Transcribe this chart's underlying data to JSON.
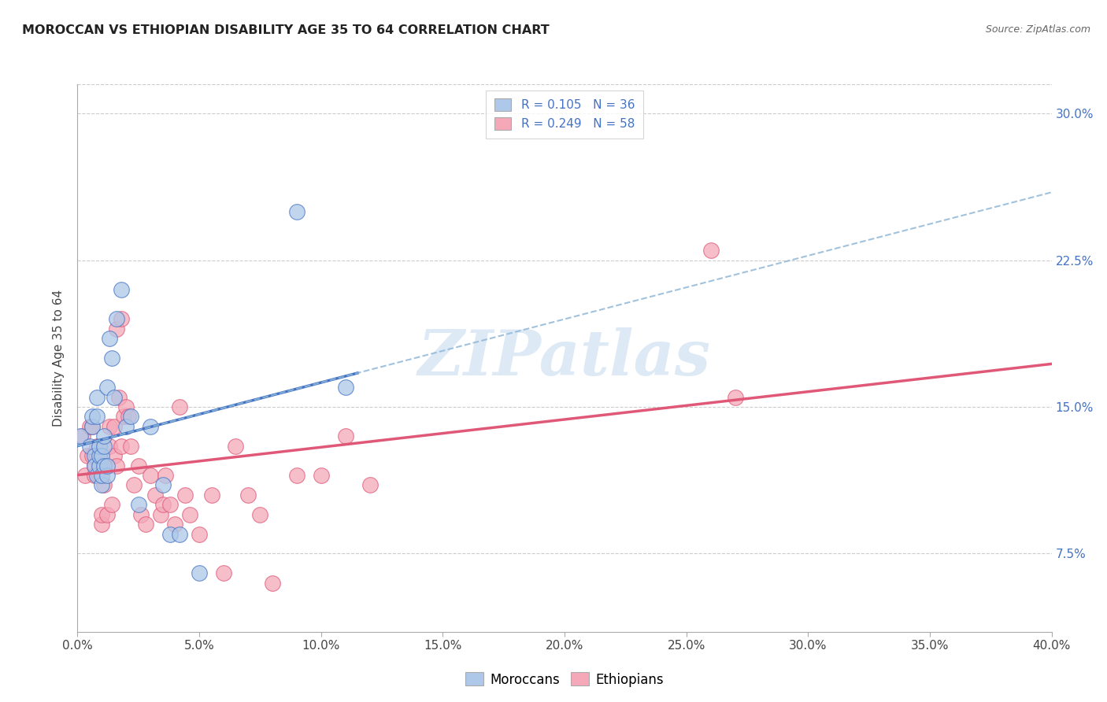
{
  "title": "MOROCCAN VS ETHIOPIAN DISABILITY AGE 35 TO 64 CORRELATION CHART",
  "source": "Source: ZipAtlas.com",
  "ylabel": "Disability Age 35 to 64",
  "moroccan_color": "#adc8e8",
  "ethiopian_color": "#f4a8b8",
  "moroccan_line_color": "#4472c4",
  "ethiopian_line_color": "#e05878",
  "moroccan_dashed_color": "#90b8d8",
  "background_color": "#ffffff",
  "grid_color": "#cccccc",
  "xlim": [
    0.0,
    0.4
  ],
  "ylim": [
    0.035,
    0.315
  ],
  "yticks": [
    0.075,
    0.15,
    0.225,
    0.3
  ],
  "xticks": [
    0.0,
    0.05,
    0.1,
    0.15,
    0.2,
    0.25,
    0.3,
    0.35,
    0.4
  ],
  "moroccan_x": [
    0.001,
    0.005,
    0.006,
    0.006,
    0.007,
    0.007,
    0.008,
    0.008,
    0.008,
    0.009,
    0.009,
    0.009,
    0.01,
    0.01,
    0.01,
    0.011,
    0.011,
    0.011,
    0.012,
    0.012,
    0.012,
    0.013,
    0.014,
    0.015,
    0.016,
    0.018,
    0.02,
    0.022,
    0.025,
    0.03,
    0.035,
    0.038,
    0.042,
    0.05,
    0.09,
    0.11
  ],
  "moroccan_y": [
    0.135,
    0.13,
    0.14,
    0.145,
    0.125,
    0.12,
    0.145,
    0.155,
    0.115,
    0.12,
    0.125,
    0.13,
    0.11,
    0.115,
    0.125,
    0.12,
    0.13,
    0.135,
    0.115,
    0.12,
    0.16,
    0.185,
    0.175,
    0.155,
    0.195,
    0.21,
    0.14,
    0.145,
    0.1,
    0.14,
    0.11,
    0.085,
    0.085,
    0.065,
    0.25,
    0.16
  ],
  "ethiopian_x": [
    0.002,
    0.003,
    0.004,
    0.005,
    0.006,
    0.006,
    0.007,
    0.007,
    0.008,
    0.008,
    0.009,
    0.009,
    0.01,
    0.01,
    0.011,
    0.011,
    0.012,
    0.013,
    0.013,
    0.014,
    0.015,
    0.015,
    0.016,
    0.016,
    0.017,
    0.018,
    0.018,
    0.019,
    0.02,
    0.021,
    0.022,
    0.023,
    0.025,
    0.026,
    0.028,
    0.03,
    0.032,
    0.034,
    0.035,
    0.036,
    0.038,
    0.04,
    0.042,
    0.044,
    0.046,
    0.05,
    0.055,
    0.06,
    0.065,
    0.07,
    0.075,
    0.08,
    0.09,
    0.1,
    0.11,
    0.12,
    0.26,
    0.27
  ],
  "ethiopian_y": [
    0.135,
    0.115,
    0.125,
    0.14,
    0.125,
    0.14,
    0.12,
    0.115,
    0.13,
    0.125,
    0.12,
    0.115,
    0.09,
    0.095,
    0.11,
    0.12,
    0.095,
    0.13,
    0.14,
    0.1,
    0.125,
    0.14,
    0.19,
    0.12,
    0.155,
    0.195,
    0.13,
    0.145,
    0.15,
    0.145,
    0.13,
    0.11,
    0.12,
    0.095,
    0.09,
    0.115,
    0.105,
    0.095,
    0.1,
    0.115,
    0.1,
    0.09,
    0.15,
    0.105,
    0.095,
    0.085,
    0.105,
    0.065,
    0.13,
    0.105,
    0.095,
    0.06,
    0.115,
    0.115,
    0.135,
    0.11,
    0.23,
    0.155
  ],
  "legend_line1": "R = 0.105   N = 36",
  "legend_line2": "R = 0.249   N = 58",
  "legend_R_color": "#4472c4",
  "watermark": "ZIPatlas",
  "watermark_color": "#ddeaf5"
}
